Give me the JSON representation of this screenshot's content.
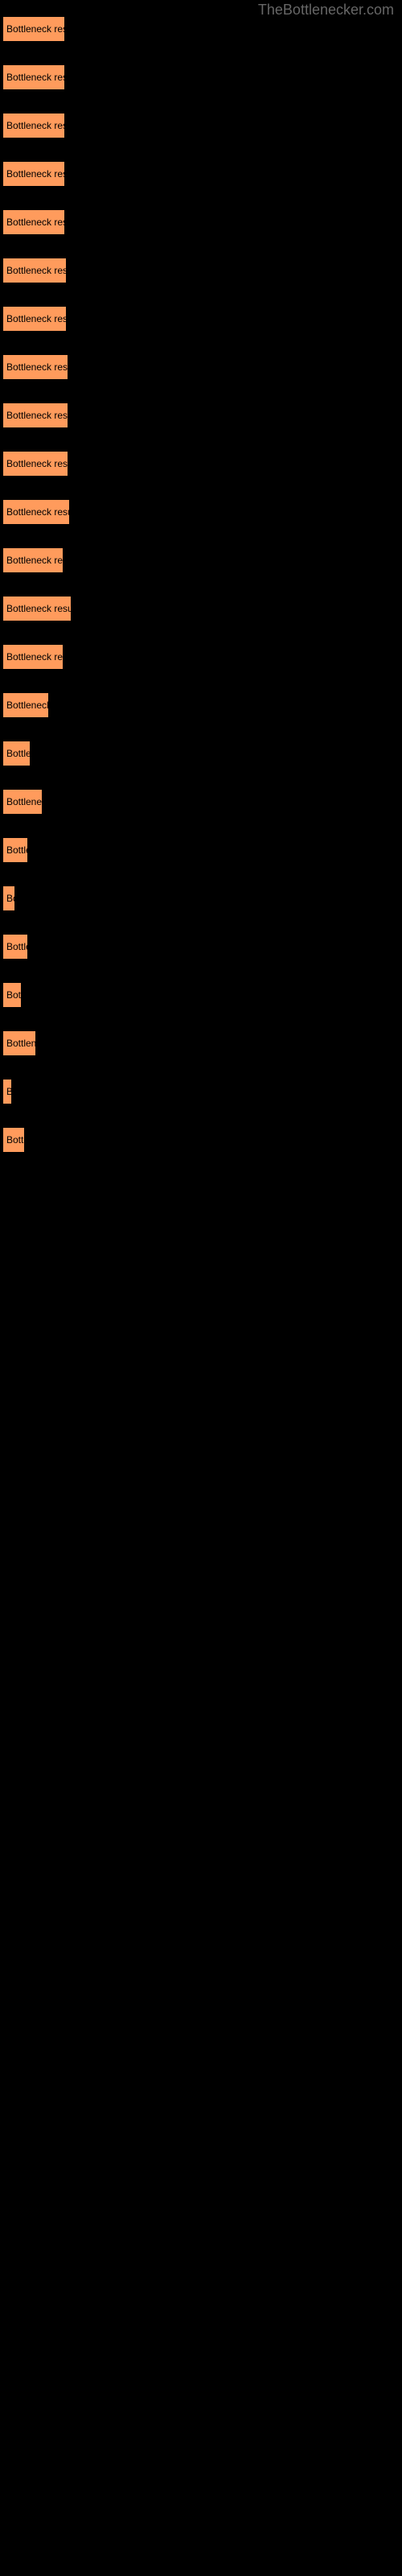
{
  "watermark": "TheBottlenecker.com",
  "buttons": [
    {
      "label": "Bottleneck result",
      "width": 78
    },
    {
      "label": "Bottleneck result",
      "width": 78
    },
    {
      "label": "Bottleneck result",
      "width": 78
    },
    {
      "label": "Bottleneck result",
      "width": 78
    },
    {
      "label": "Bottleneck result",
      "width": 78
    },
    {
      "label": "Bottleneck result",
      "width": 80
    },
    {
      "label": "Bottleneck result",
      "width": 80
    },
    {
      "label": "Bottleneck result",
      "width": 82
    },
    {
      "label": "Bottleneck result",
      "width": 82
    },
    {
      "label": "Bottleneck result",
      "width": 82
    },
    {
      "label": "Bottleneck result",
      "width": 84
    },
    {
      "label": "Bottleneck resul",
      "width": 76
    },
    {
      "label": "Bottleneck result",
      "width": 86
    },
    {
      "label": "Bottleneck resul",
      "width": 76
    },
    {
      "label": "Bottleneck r",
      "width": 58
    },
    {
      "label": "Bottlen",
      "width": 35
    },
    {
      "label": "Bottleneck",
      "width": 50
    },
    {
      "label": "Bottle",
      "width": 32
    },
    {
      "label": "Bo",
      "width": 16
    },
    {
      "label": "Bottle",
      "width": 32
    },
    {
      "label": "Bott",
      "width": 24
    },
    {
      "label": "Bottlene",
      "width": 42
    },
    {
      "label": "B",
      "width": 12
    },
    {
      "label": "Bottl",
      "width": 28
    }
  ],
  "button_color": "#ff9b5c",
  "background_color": "#000000",
  "watermark_color": "#666666"
}
